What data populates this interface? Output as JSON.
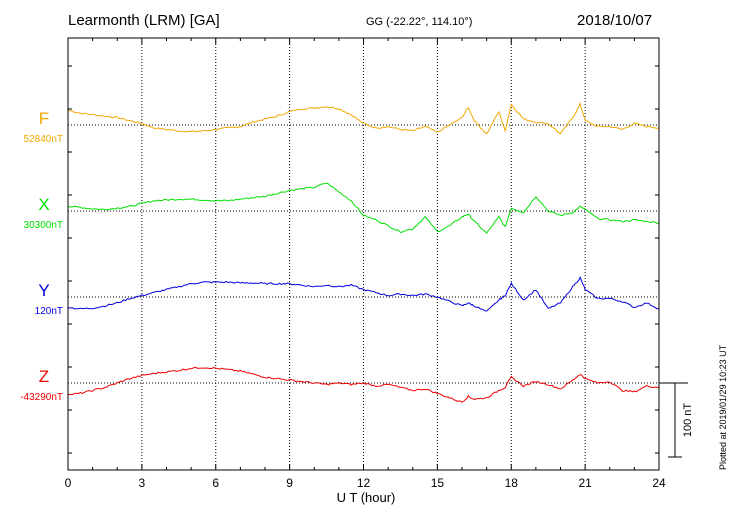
{
  "header": {
    "station": "Learmonth (LRM)  [GA]",
    "coords": "GG (-22.22°, 114.10°)",
    "date": "2018/10/07"
  },
  "plotted_note": "Plotted at 2019/01/29 10:23 UT",
  "chart_data": {
    "type": "line",
    "xlabel": "U T (hour)",
    "xlim": [
      0,
      24
    ],
    "xticks": [
      "0",
      "3",
      "6",
      "9",
      "12",
      "15",
      "18",
      "21",
      "24"
    ],
    "grid": true,
    "scale_bar": {
      "label": "100 nT",
      "value_nT": 100
    },
    "series": [
      {
        "name": "F",
        "baseline_label": "52840nT",
        "baseline_nT": 52840,
        "color": "#f0a800",
        "x": [
          0,
          0.5,
          1,
          1.5,
          2,
          2.5,
          3,
          3.5,
          4,
          4.5,
          5,
          5.5,
          6,
          6.5,
          7,
          7.5,
          8,
          8.5,
          9,
          9.5,
          10,
          10.5,
          11,
          11.5,
          12,
          12.5,
          13,
          13.5,
          14,
          14.5,
          15,
          15.5,
          16,
          16.25,
          16.5,
          17,
          17.5,
          17.75,
          18,
          18.5,
          19,
          19.5,
          20,
          20.5,
          20.8,
          21,
          21.5,
          22,
          22.5,
          23,
          23.5,
          24
        ],
        "y": [
          20,
          16,
          14,
          12,
          10,
          6,
          2,
          -4,
          -6,
          -8,
          -9,
          -8,
          -6,
          -4,
          -2,
          4,
          8,
          12,
          18,
          22,
          23,
          25,
          22,
          14,
          2,
          -4,
          -2,
          -6,
          -8,
          -2,
          -10,
          0,
          10,
          24,
          6,
          -12,
          18,
          -8,
          28,
          8,
          4,
          2,
          -12,
          10,
          28,
          6,
          -2,
          -2,
          -6,
          2,
          -2,
          -4
        ]
      },
      {
        "name": "X",
        "baseline_label": "30300nT",
        "baseline_nT": 30300,
        "color": "#00e000",
        "x": [
          0,
          0.5,
          1,
          1.5,
          2,
          2.5,
          3,
          3.5,
          4,
          4.5,
          5,
          5.5,
          6,
          6.5,
          7,
          7.5,
          8,
          8.5,
          9,
          9.5,
          10,
          10.5,
          11,
          11.5,
          12,
          12.5,
          13,
          13.5,
          14,
          14.5,
          15,
          15.5,
          16,
          16.25,
          16.5,
          17,
          17.5,
          17.75,
          18,
          18.5,
          19,
          19.5,
          20,
          20.5,
          20.8,
          21,
          21.5,
          22,
          22.5,
          23,
          23.5,
          24
        ],
        "y": [
          6,
          5,
          3,
          2,
          4,
          6,
          10,
          14,
          15,
          16,
          16,
          15,
          14,
          14,
          16,
          18,
          20,
          24,
          28,
          30,
          32,
          38,
          26,
          14,
          -6,
          -12,
          -20,
          -28,
          -24,
          -8,
          -28,
          -20,
          -8,
          -4,
          -14,
          -30,
          -8,
          -22,
          4,
          -2,
          20,
          0,
          -6,
          -2,
          6,
          2,
          -10,
          -12,
          -14,
          -12,
          -14,
          -16
        ]
      },
      {
        "name": "Y",
        "baseline_label": "120nT",
        "baseline_nT": 120,
        "color": "#0000dd",
        "x": [
          0,
          0.5,
          1,
          1.5,
          2,
          2.5,
          3,
          3.5,
          4,
          4.5,
          5,
          5.5,
          6,
          6.5,
          7,
          7.5,
          8,
          8.5,
          9,
          9.5,
          10,
          10.5,
          11,
          11.5,
          12,
          12.5,
          13,
          13.5,
          14,
          14.5,
          15,
          15.5,
          16,
          16.25,
          16.5,
          17,
          17.5,
          17.75,
          18,
          18.5,
          19,
          19.5,
          20,
          20.5,
          20.8,
          21,
          21.5,
          22,
          22.5,
          23,
          23.5,
          24
        ],
        "y": [
          -14,
          -16,
          -15,
          -12,
          -8,
          -2,
          2,
          6,
          10,
          14,
          18,
          20,
          20,
          20,
          19,
          19,
          18,
          18,
          18,
          16,
          14,
          16,
          14,
          16,
          10,
          6,
          2,
          4,
          2,
          4,
          0,
          -6,
          -12,
          -8,
          -12,
          -20,
          -4,
          2,
          18,
          -4,
          10,
          -16,
          -8,
          14,
          26,
          10,
          -2,
          -2,
          -6,
          -14,
          -8,
          -16
        ]
      },
      {
        "name": "Z",
        "baseline_label": "-43290nT",
        "baseline_nT": -43290,
        "color": "#ee0000",
        "x": [
          0,
          0.5,
          1,
          1.5,
          2,
          2.5,
          3,
          3.5,
          4,
          4.5,
          5,
          5.5,
          6,
          6.5,
          7,
          7.5,
          8,
          8.5,
          9,
          9.5,
          10,
          10.5,
          11,
          11.5,
          12,
          12.5,
          13,
          13.5,
          14,
          14.5,
          15,
          15.5,
          16,
          16.25,
          16.5,
          17,
          17.5,
          17.75,
          18,
          18.5,
          19,
          19.5,
          20,
          20.5,
          20.8,
          21,
          21.5,
          22,
          22.5,
          23,
          23.5,
          24
        ],
        "y": [
          -16,
          -14,
          -10,
          -6,
          0,
          6,
          10,
          13,
          15,
          17,
          20,
          21,
          20,
          18,
          16,
          12,
          8,
          6,
          4,
          2,
          0,
          -2,
          0,
          -2,
          0,
          -4,
          -2,
          -6,
          -10,
          -8,
          -14,
          -20,
          -26,
          -18,
          -22,
          -20,
          -10,
          -6,
          8,
          -4,
          2,
          -2,
          -8,
          4,
          12,
          6,
          0,
          2,
          -10,
          -12,
          -4,
          -6
        ]
      }
    ]
  }
}
